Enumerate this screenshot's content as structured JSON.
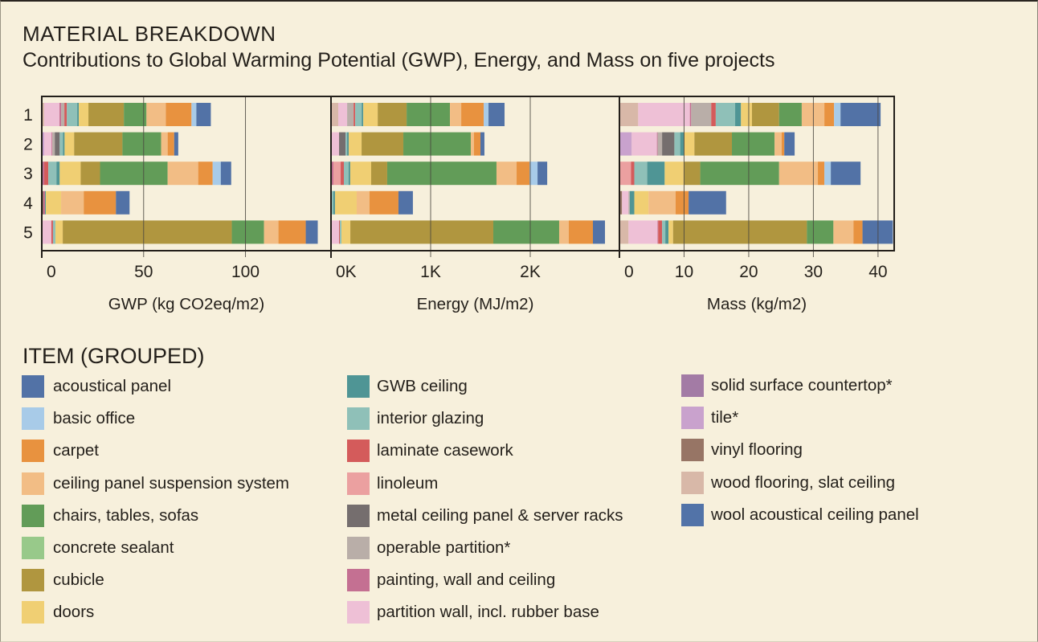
{
  "header": {
    "title": "MATERIAL BREAKDOWN",
    "subtitle": "Contributions to Global Warming Potential (GWP), Energy, and Mass on five projects"
  },
  "legend": {
    "title": "ITEM (GROUPED)",
    "items": [
      {
        "label": "acoustical panel",
        "color": "#5272a6"
      },
      {
        "label": "basic office",
        "color": "#a8cbe8"
      },
      {
        "label": "carpet",
        "color": "#e8923f"
      },
      {
        "label": "ceiling panel suspension system",
        "color": "#f2bd85"
      },
      {
        "label": "chairs, tables, sofas",
        "color": "#629c58"
      },
      {
        "label": "concrete sealant",
        "color": "#98c98a"
      },
      {
        "label": "cubicle",
        "color": "#b0963f"
      },
      {
        "label": "doors",
        "color": "#f0cf73"
      },
      {
        "label": "GWB ceiling",
        "color": "#4f9595"
      },
      {
        "label": "interior glazing",
        "color": "#8fc0b8"
      },
      {
        "label": "laminate casework",
        "color": "#d45b5b"
      },
      {
        "label": "linoleum",
        "color": "#eba0a0"
      },
      {
        "label": "metal ceiling panel & server racks",
        "color": "#756e6e"
      },
      {
        "label": "operable partition*",
        "color": "#b9aea8"
      },
      {
        "label": "painting, wall and ceiling",
        "color": "#c47092"
      },
      {
        "label": "partition wall, incl. rubber base",
        "color": "#eec0d6"
      },
      {
        "label": "solid surface countertop*",
        "color": "#a37ba5"
      },
      {
        "label": "tile*",
        "color": "#c9a2cd"
      },
      {
        "label": "vinyl flooring",
        "color": "#977565"
      },
      {
        "label": "wood flooring, slat ceiling",
        "color": "#d8b8a8"
      },
      {
        "label": "wool acoustical ceiling panel",
        "color": "#5273a8"
      }
    ]
  },
  "chart_data": [
    {
      "type": "bar",
      "orientation": "horizontal",
      "stacked": true,
      "title": "",
      "xlabel": "GWP (kg CO2eq/m2)",
      "ylabel": "",
      "categories": [
        "1",
        "2",
        "3",
        "4",
        "5"
      ],
      "xlim": [
        0,
        142
      ],
      "ticks": [
        0,
        50,
        100
      ],
      "tick_labels": [
        "0",
        "50",
        "100"
      ],
      "grid": true,
      "series": [
        {
          "name": "acoustical panel",
          "values": [
            7.1,
            2.0,
            5.1,
            6.7,
            5.9
          ]
        },
        {
          "name": "basic office",
          "values": [
            2.4,
            0,
            4.0,
            0,
            0
          ]
        },
        {
          "name": "carpet",
          "values": [
            12.6,
            3.2,
            7.1,
            15.8,
            13.4
          ]
        },
        {
          "name": "ceiling panel suspension system",
          "values": [
            9.5,
            3.2,
            15.0,
            11.1,
            7.1
          ]
        },
        {
          "name": "chairs, tables, sofas",
          "values": [
            11.1,
            19.0,
            33.2,
            0,
            15.8
          ]
        },
        {
          "name": "cubicle",
          "values": [
            17.4,
            23.7,
            9.5,
            0,
            83.0
          ]
        },
        {
          "name": "doors",
          "values": [
            4.7,
            4.7,
            10.3,
            7.5,
            3.6
          ]
        },
        {
          "name": "GWB ceiling",
          "values": [
            0.8,
            0.8,
            1.6,
            0.4,
            0
          ]
        },
        {
          "name": "interior glazing",
          "values": [
            5.1,
            1.6,
            4.0,
            0,
            1.2
          ]
        },
        {
          "name": "laminate casework",
          "values": [
            1.2,
            0,
            2.0,
            0,
            0.8
          ]
        },
        {
          "name": "metal ceiling panel & server racks",
          "values": [
            0,
            2.4,
            0,
            0,
            0
          ]
        },
        {
          "name": "operable partition*",
          "values": [
            1.6,
            1.2,
            0,
            0,
            0
          ]
        },
        {
          "name": "painting, wall and ceiling",
          "values": [
            0.8,
            0.4,
            1.2,
            0.8,
            0
          ]
        },
        {
          "name": "partition wall, incl. rubber base",
          "values": [
            7.5,
            3.6,
            0,
            0,
            4.7
          ]
        },
        {
          "name": "tile*",
          "values": [
            0,
            1.2,
            0,
            0,
            0
          ]
        },
        {
          "name": "vinyl flooring",
          "values": [
            0,
            0,
            0,
            0.8,
            0
          ]
        },
        {
          "name": "wood flooring, slat ceiling",
          "values": [
            1.2,
            0,
            0,
            0,
            0
          ]
        }
      ]
    },
    {
      "type": "bar",
      "orientation": "horizontal",
      "stacked": true,
      "title": "",
      "xlabel": "Energy (MJ/m2)",
      "ylabel": "",
      "categories": [
        "1",
        "2",
        "3",
        "4",
        "5"
      ],
      "xlim": [
        0,
        2895
      ],
      "ticks": [
        0,
        1000,
        2000
      ],
      "tick_labels": [
        "0K",
        "1K",
        "2K"
      ],
      "grid": true,
      "series": [
        {
          "name": "acoustical panel",
          "values": [
            161,
            40,
            97,
            145,
            121
          ]
        },
        {
          "name": "basic office",
          "values": [
            48,
            0,
            81,
            0,
            0
          ]
        },
        {
          "name": "carpet",
          "values": [
            226,
            65,
            129,
            290,
            242
          ]
        },
        {
          "name": "ceiling panel suspension system",
          "values": [
            113,
            32,
            202,
            129,
            97
          ]
        },
        {
          "name": "chairs, tables, sofas",
          "values": [
            435,
            677,
            1097,
            0,
            661
          ]
        },
        {
          "name": "cubicle",
          "values": [
            290,
            419,
            161,
            0,
            1435
          ]
        },
        {
          "name": "doors",
          "values": [
            145,
            129,
            210,
            218,
            89
          ]
        },
        {
          "name": "GWB ceiling",
          "values": [
            16,
            16,
            16,
            16,
            0
          ]
        },
        {
          "name": "interior glazing",
          "values": [
            65,
            16,
            48,
            16,
            16
          ]
        },
        {
          "name": "laminate casework",
          "values": [
            16,
            0,
            32,
            0,
            8
          ]
        },
        {
          "name": "linoleum",
          "values": [
            0,
            0,
            73,
            0,
            0
          ]
        },
        {
          "name": "metal ceiling panel & server racks",
          "values": [
            0,
            65,
            0,
            0,
            0
          ]
        },
        {
          "name": "operable partition*",
          "values": [
            65,
            0,
            0,
            0,
            0
          ]
        },
        {
          "name": "painting, wall and ceiling",
          "values": [
            0,
            0,
            24,
            0,
            0
          ]
        },
        {
          "name": "partition wall, incl. rubber base",
          "values": [
            89,
            81,
            0,
            0,
            81
          ]
        },
        {
          "name": "vinyl flooring",
          "values": [
            0,
            0,
            0,
            8,
            0
          ]
        },
        {
          "name": "wood flooring, slat ceiling",
          "values": [
            73,
            0,
            0,
            0,
            0
          ]
        }
      ]
    },
    {
      "type": "bar",
      "orientation": "horizontal",
      "stacked": true,
      "title": "",
      "xlabel": "Mass (kg/m2)",
      "ylabel": "",
      "categories": [
        "1",
        "2",
        "3",
        "4",
        "5"
      ],
      "xlim": [
        0,
        42.5
      ],
      "ticks": [
        0,
        10,
        20,
        30,
        40
      ],
      "tick_labels": [
        "0",
        "10",
        "20",
        "30",
        "40"
      ],
      "grid": true,
      "series": [
        {
          "name": "acoustical panel",
          "values": [
            6.2,
            1.6,
            4.6,
            5.8,
            4.7
          ]
        },
        {
          "name": "basic office",
          "values": [
            1.0,
            0,
            1.0,
            0,
            0
          ]
        },
        {
          "name": "carpet",
          "values": [
            1.5,
            0.4,
            1.0,
            2.0,
            1.4
          ]
        },
        {
          "name": "ceiling panel suspension system",
          "values": [
            3.5,
            1.1,
            6.0,
            4.2,
            3.1
          ]
        },
        {
          "name": "chairs, tables, sofas",
          "values": [
            3.5,
            6.6,
            12.2,
            0,
            4.1
          ]
        },
        {
          "name": "cubicle",
          "values": [
            4.2,
            5.8,
            2.5,
            0,
            20.7
          ]
        },
        {
          "name": "doors",
          "values": [
            1.7,
            1.6,
            3.0,
            2.2,
            0.7
          ]
        },
        {
          "name": "GWB ceiling",
          "values": [
            0.9,
            0.6,
            2.7,
            0.7,
            0.5
          ]
        },
        {
          "name": "interior glazing",
          "values": [
            3.0,
            0.9,
            2.0,
            0,
            0.5
          ]
        },
        {
          "name": "laminate casework",
          "values": [
            0.7,
            0,
            0.5,
            0,
            0.6
          ]
        },
        {
          "name": "linoleum",
          "values": [
            0,
            0,
            1.7,
            0,
            0
          ]
        },
        {
          "name": "metal ceiling panel & server racks",
          "values": [
            0,
            1.9,
            0,
            0,
            0
          ]
        },
        {
          "name": "operable partition*",
          "values": [
            3.1,
            0.7,
            0,
            0.2,
            0
          ]
        },
        {
          "name": "painting, wall and ceiling",
          "values": [
            0.2,
            0.1,
            0.1,
            0,
            0.1
          ]
        },
        {
          "name": "partition wall, incl. rubber base",
          "values": [
            8.0,
            3.9,
            0,
            1.0,
            4.5
          ]
        },
        {
          "name": "tile*",
          "values": [
            0,
            1.9,
            0,
            0,
            0
          ]
        },
        {
          "name": "vinyl flooring",
          "values": [
            0,
            0,
            0,
            0.4,
            0
          ]
        },
        {
          "name": "wood flooring, slat ceiling",
          "values": [
            2.9,
            0,
            0,
            0,
            1.4
          ]
        }
      ]
    }
  ]
}
